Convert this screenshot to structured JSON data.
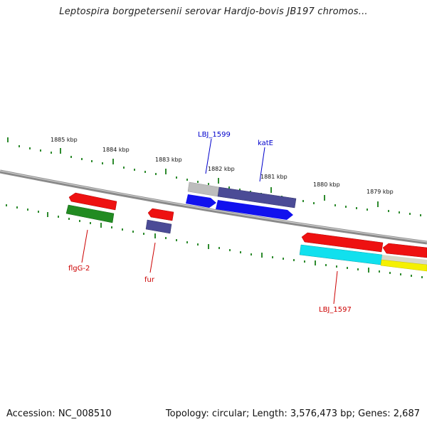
{
  "title": "Leptospira borgpetersenii serovar Hardjo-bovis JB197 chromos...",
  "footer": {
    "accession": "Accession: NC_008510",
    "topology": "Topology: circular; Length: 3,576,473 bp; Genes: 2,687"
  },
  "tick_labels": [
    "1885 kbp",
    "1884 kbp",
    "1883 kbp",
    "1882 kbp",
    "1881 kbp",
    "1880 kbp",
    "1879 kbp"
  ],
  "gene_labels": {
    "lbj1599": "LBJ_1599",
    "kate": "katE",
    "flgg2": "flgG-2",
    "fur": "fur",
    "lbj1597": "LBJ_1597"
  },
  "colors": {
    "backbone": "#8a8a8a",
    "tick_green": "#2e8b2e",
    "label_blue": "#0000cc",
    "label_red": "#cc0000",
    "gene_red": "#ee1111",
    "gene_green": "#228b22",
    "gene_purple": "#4b4b96",
    "gene_blue": "#1111ee",
    "gene_gray": "#bdbdbd",
    "gene_cyan": "#11e0ee",
    "gene_yellow": "#f5f000"
  }
}
